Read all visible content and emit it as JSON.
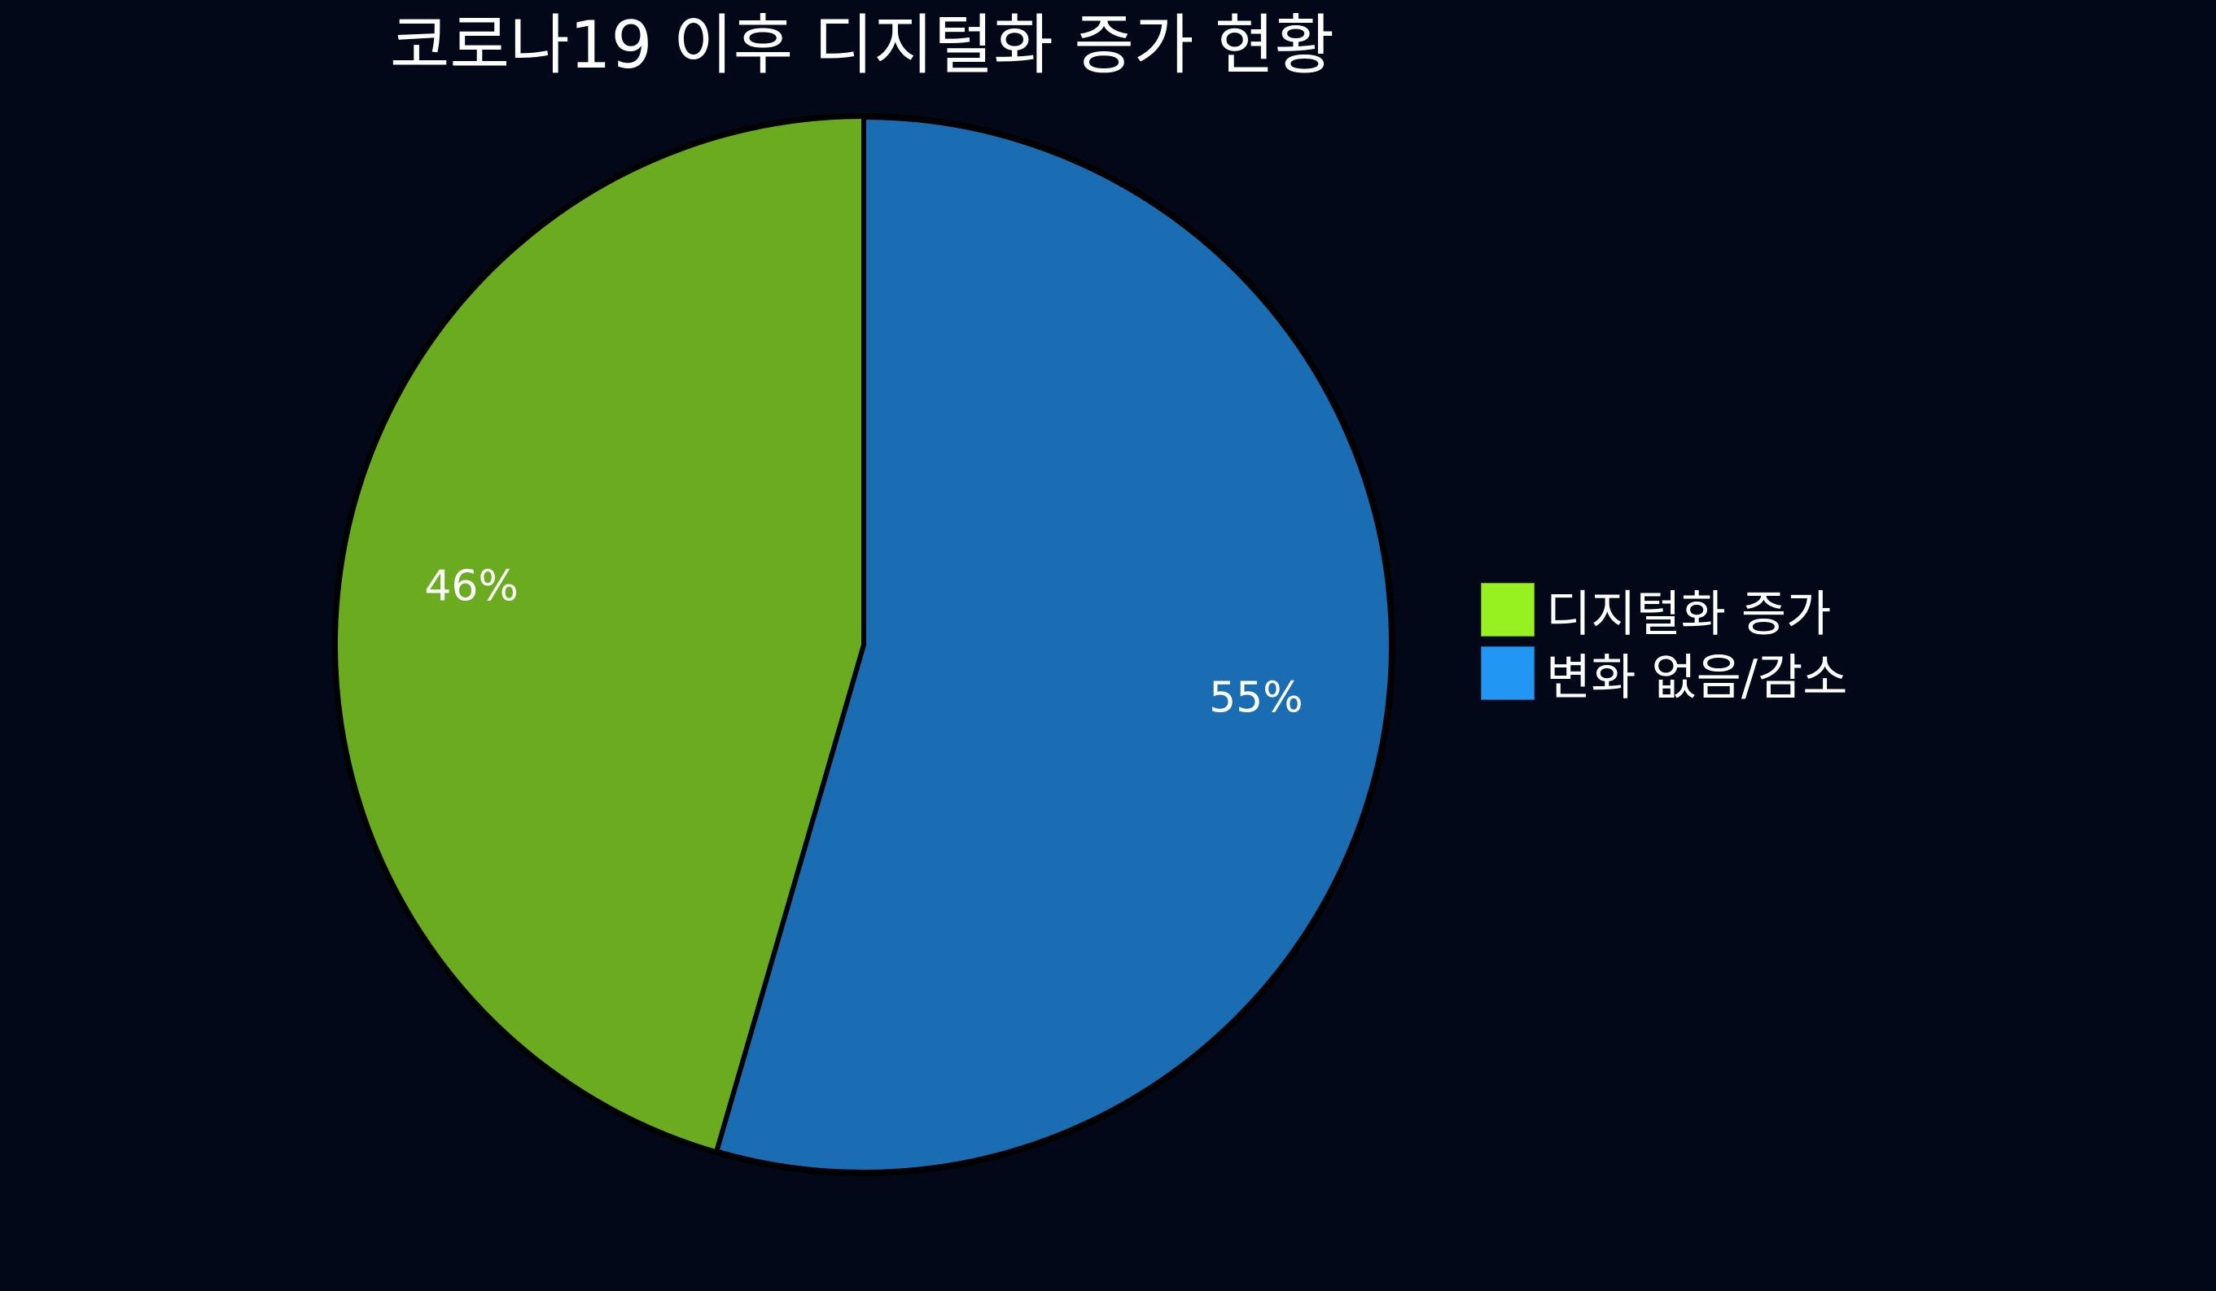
{
  "chart_data": {
    "type": "pie",
    "title": "코로나19 이후 디지털화 증가 현황",
    "slices": [
      {
        "label": "디지털화 증가",
        "value": 45.5,
        "data_label": "46%",
        "color": "#6aab20",
        "legend_color": "#97f01f"
      },
      {
        "label": "변화 없음/감소",
        "value": 54.5,
        "data_label": "55%",
        "color": "#1a6db3",
        "legend_color": "#2196f3"
      }
    ],
    "legend_position": "right",
    "background": "#020817"
  }
}
